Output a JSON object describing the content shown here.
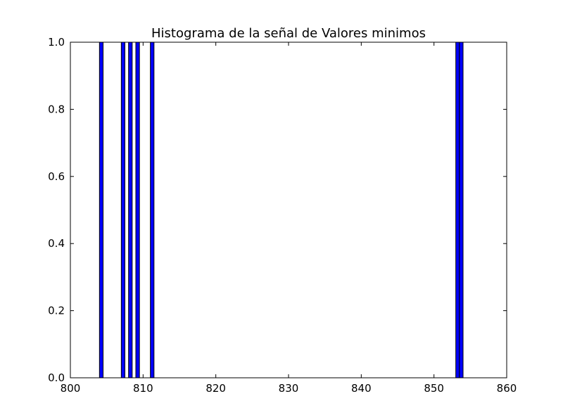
{
  "chart_data": {
    "type": "bar",
    "title": "Histograma de la señal de Valores minimos",
    "xlabel": "",
    "ylabel": "",
    "xlim": [
      800,
      860
    ],
    "ylim": [
      0,
      1.0
    ],
    "xticks": [
      800,
      810,
      820,
      830,
      840,
      850,
      860
    ],
    "xtick_labels": [
      "800",
      "810",
      "820",
      "830",
      "840",
      "850",
      "860"
    ],
    "yticks": [
      0.0,
      0.2,
      0.4,
      0.6,
      0.8,
      1.0
    ],
    "ytick_labels": [
      "0.0",
      "0.2",
      "0.4",
      "0.6",
      "0.8",
      "1.0"
    ],
    "bins": [
      {
        "x0": 804.0,
        "x1": 804.5,
        "count": 1
      },
      {
        "x0": 807.0,
        "x1": 807.5,
        "count": 1
      },
      {
        "x0": 808.0,
        "x1": 808.5,
        "count": 1
      },
      {
        "x0": 809.0,
        "x1": 809.5,
        "count": 1
      },
      {
        "x0": 811.0,
        "x1": 811.5,
        "count": 1
      },
      {
        "x0": 853.0,
        "x1": 853.5,
        "count": 1
      },
      {
        "x0": 853.5,
        "x1": 854.0,
        "count": 1
      }
    ],
    "bar_color": "#0000ff",
    "edge_color": "#000000",
    "grid": false
  }
}
